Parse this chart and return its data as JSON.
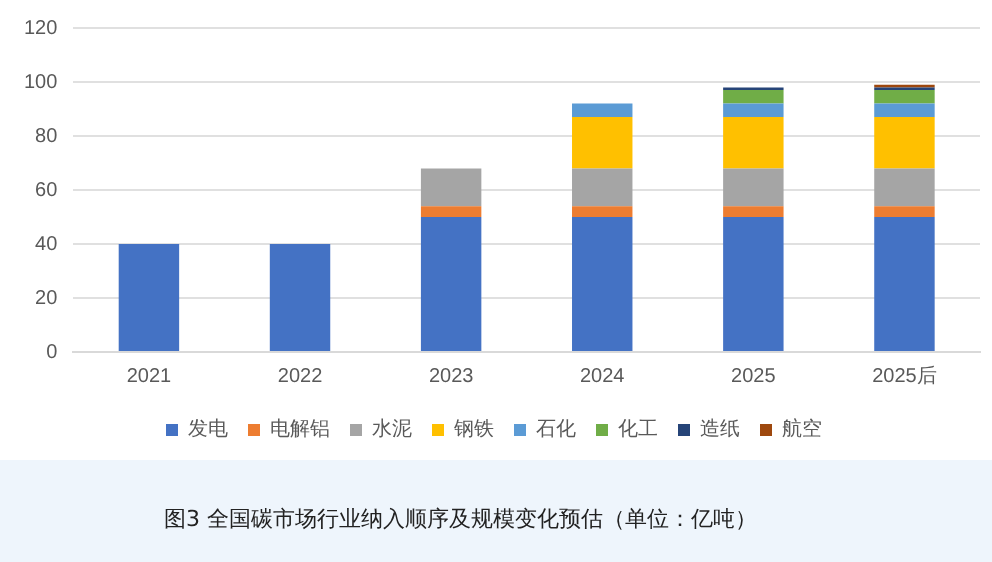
{
  "chart_data": {
    "type": "bar",
    "title": "图3 全国碳市场行业纳入顺序及规模变化预估（单位：亿吨）",
    "categories": [
      "2021",
      "2022",
      "2023",
      "2024",
      "2025",
      "2025后"
    ],
    "stacked": true,
    "series": [
      {
        "name": "发电",
        "color": "#4472c4",
        "values": [
          40,
          40,
          50,
          50,
          50,
          50
        ]
      },
      {
        "name": "电解铝",
        "color": "#ed7d31",
        "values": [
          null,
          null,
          4,
          4,
          4,
          4
        ]
      },
      {
        "name": "水泥",
        "color": "#a5a5a5",
        "values": [
          null,
          null,
          14,
          14,
          14,
          14
        ]
      },
      {
        "name": "钢铁",
        "color": "#ffc000",
        "values": [
          null,
          null,
          null,
          19,
          19,
          19
        ]
      },
      {
        "name": "石化",
        "color": "#5b9bd5",
        "values": [
          null,
          null,
          null,
          5,
          5,
          5
        ]
      },
      {
        "name": "化工",
        "color": "#70ad47",
        "values": [
          null,
          null,
          null,
          null,
          5,
          5
        ]
      },
      {
        "name": "造纸",
        "color": "#264478",
        "values": [
          null,
          null,
          null,
          null,
          1,
          1
        ]
      },
      {
        "name": "航空",
        "color": "#9e480e",
        "values": [
          null,
          null,
          null,
          null,
          null,
          1
        ]
      }
    ],
    "ylim": [
      0,
      120
    ],
    "yticks": [
      0,
      20,
      40,
      60,
      80,
      100,
      120
    ],
    "grid": "y",
    "legend": "bottom"
  }
}
